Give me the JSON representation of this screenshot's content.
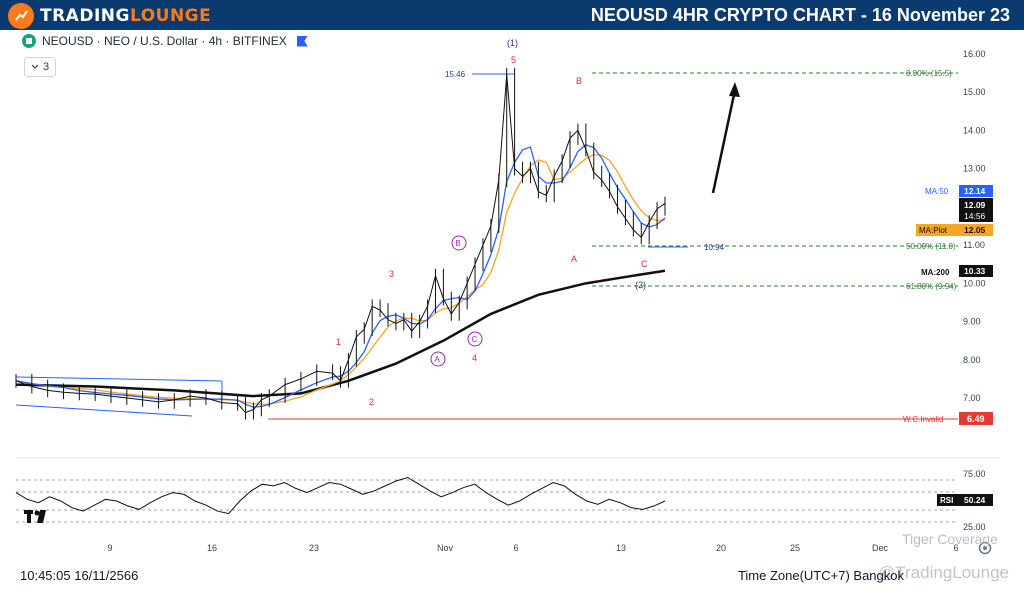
{
  "header": {
    "brand_part1": "TRADING",
    "brand_part2": "LOUNGE",
    "title": "NEOUSD 4HR CRYPTO CHART - 16 November 23"
  },
  "symbol": {
    "text": "NEOUSD · NEO / U.S. Dollar · 4h · BITFINEX",
    "indicator_toggle": "3"
  },
  "footer": {
    "datetime": "10:45:05 16/11/2566",
    "timezone": "Time Zone(UTC+7) Bangkok",
    "watermark1": "Tiger Coverage",
    "watermark2": "@TradingLounge"
  },
  "colors": {
    "header_bg": "#0a3a6e",
    "accent": "#ff7a1a",
    "ma_blue": "#2962ff",
    "ma_orange": "#f5a623",
    "ma200": "#111111",
    "invalid_red": "#e53935",
    "fib_green": "#2e7d32",
    "wave_red": "#d32f2f",
    "wave_purple": "#9c27b0",
    "wave_blue": "#1e3a8a"
  },
  "chart_data": {
    "type": "line",
    "symbol": "NEOUSD",
    "timeframe": "4h",
    "ylim": [
      5.7,
      16.3
    ],
    "yticks": [
      "16.00",
      "15.00",
      "14.00",
      "13.00",
      "11.00",
      "10.00",
      "9.00",
      "8.00",
      "7.00"
    ],
    "xticks": [
      "9",
      "16",
      "23",
      "Nov",
      "6",
      "13",
      "20",
      "25",
      "Dec",
      "6"
    ],
    "price_close": [
      [
        0,
        7.45
      ],
      [
        2,
        7.3
      ],
      [
        4,
        7.2
      ],
      [
        6,
        7.15
      ],
      [
        8,
        7.12
      ],
      [
        10,
        7.1
      ],
      [
        12,
        7.05
      ],
      [
        14,
        7.0
      ],
      [
        16,
        6.95
      ],
      [
        18,
        6.9
      ],
      [
        20,
        6.95
      ],
      [
        22,
        7.05
      ],
      [
        24,
        7.0
      ],
      [
        26,
        6.88
      ],
      [
        28,
        6.85
      ],
      [
        29,
        6.62
      ],
      [
        30,
        6.7
      ],
      [
        31,
        6.95
      ],
      [
        32,
        7.05
      ],
      [
        34,
        7.35
      ],
      [
        36,
        7.5
      ],
      [
        38,
        7.7
      ],
      [
        40,
        7.65
      ],
      [
        41,
        7.45
      ],
      [
        42,
        8.0
      ],
      [
        43,
        8.6
      ],
      [
        44,
        8.8
      ],
      [
        45,
        9.4
      ],
      [
        46,
        9.3
      ],
      [
        47,
        9.05
      ],
      [
        48,
        8.95
      ],
      [
        49,
        9.05
      ],
      [
        50,
        8.75
      ],
      [
        51,
        9.0
      ],
      [
        52,
        9.4
      ],
      [
        53,
        10.2
      ],
      [
        54,
        9.6
      ],
      [
        55,
        9.2
      ],
      [
        56,
        9.5
      ],
      [
        57,
        10.0
      ],
      [
        58,
        10.5
      ],
      [
        59,
        11.0
      ],
      [
        60,
        11.5
      ],
      [
        61,
        12.7
      ],
      [
        62,
        15.46
      ],
      [
        63,
        13.0
      ],
      [
        64,
        12.8
      ],
      [
        65,
        13.0
      ],
      [
        66,
        12.4
      ],
      [
        67,
        12.3
      ],
      [
        68,
        12.8
      ],
      [
        69,
        13.2
      ],
      [
        70,
        13.8
      ],
      [
        71,
        14.0
      ],
      [
        72,
        13.5
      ],
      [
        73,
        12.9
      ],
      [
        74,
        12.7
      ],
      [
        75,
        12.4
      ],
      [
        76,
        12.0
      ],
      [
        77,
        11.7
      ],
      [
        78,
        11.4
      ],
      [
        79,
        11.2
      ],
      [
        80,
        11.6
      ],
      [
        81,
        11.95
      ],
      [
        82,
        12.09
      ]
    ],
    "ma50_last": 12.14,
    "maplot_last": 12.05,
    "ma200_last": 10.33,
    "invalidation": 6.49,
    "fib_levels": [
      {
        "label": "0.00% (15.5)",
        "value": 15.5
      },
      {
        "label": "50.00% (11.0)",
        "value": 11.0
      },
      {
        "label": "61.80% (9.94)",
        "value": 9.94
      }
    ],
    "price_labels": [
      {
        "label": "MA:50",
        "value": "12.14"
      },
      {
        "label": "",
        "value": "12.09"
      },
      {
        "label": "",
        "value": "14:56"
      },
      {
        "label": "MA:Plot",
        "value": "12.05"
      },
      {
        "label": "MA:200",
        "value": "10.33"
      }
    ],
    "invalid_label": "W.C.Invalid",
    "annotations": {
      "high_label": "15.46",
      "low_label": "10.94",
      "waves": [
        "(1)",
        "5",
        "B",
        "3",
        "1",
        "2",
        "4",
        "A",
        "C",
        "(2)"
      ],
      "circled": [
        "A",
        "B",
        "C"
      ]
    },
    "rsi": {
      "label": "RSI",
      "value": "50.24",
      "ticks": [
        "75.00",
        "25.00"
      ]
    }
  }
}
